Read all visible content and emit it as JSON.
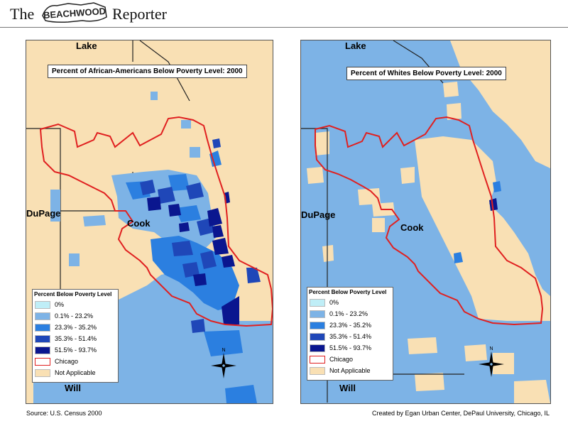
{
  "masthead": {
    "the": "The",
    "logo": "BEACHWOOD",
    "reporter": "Reporter"
  },
  "maps": [
    {
      "title": "Percent of African-Americans Below Poverty Level: 2000",
      "counties": {
        "lake": "Lake",
        "dupage": "DuPage",
        "cook": "Cook",
        "will": "Will"
      }
    },
    {
      "title": "Percent of Whites Below Poverty Level: 2000",
      "counties": {
        "lake": "Lake",
        "dupage": "DuPage",
        "cook": "Cook",
        "will": "Will"
      }
    }
  ],
  "legend": {
    "title": "Percent Below Poverty Level",
    "items": [
      {
        "label": "0%",
        "color": "#bfeef7"
      },
      {
        "label": "0.1% - 23.2%",
        "color": "#7db3e6"
      },
      {
        "label": "23.3% - 35.2%",
        "color": "#2b7fe0"
      },
      {
        "label": "35.3% - 51.4%",
        "color": "#1f47b8"
      },
      {
        "label": "51.5% - 93.7%",
        "color": "#0a168f"
      },
      {
        "label": "Chicago",
        "color": "#ffffff",
        "outline": "#e02020"
      },
      {
        "label": "Not Applicable",
        "color": "#f9e0b4"
      }
    ]
  },
  "compass": {
    "north": "N"
  },
  "footer": {
    "source": "Source: U.S. Census 2000",
    "credit": "Created by Egan Urban Center, DePaul University, Chicago, IL"
  }
}
